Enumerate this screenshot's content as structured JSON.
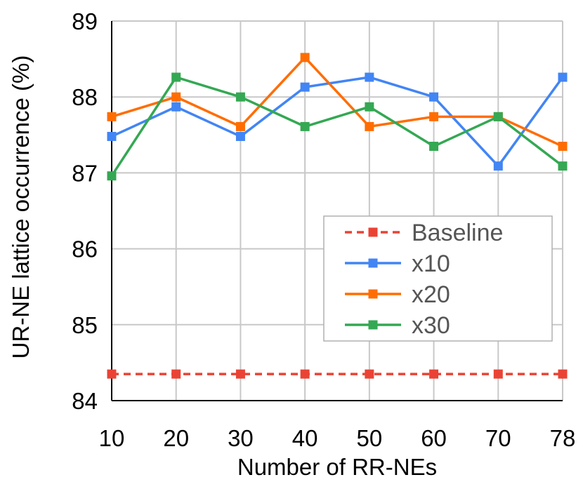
{
  "chart_data": {
    "type": "line",
    "title": "",
    "xlabel": "Number of RR-NEs",
    "ylabel": "UR-NE lattice occurrence (%)",
    "categories": [
      "10",
      "20",
      "30",
      "40",
      "50",
      "60",
      "70",
      "78"
    ],
    "ylim": [
      84,
      89
    ],
    "yticks": [
      "84",
      "85",
      "86",
      "87",
      "88",
      "89"
    ],
    "grid": true,
    "legend_position": "center-right",
    "series": [
      {
        "name": "Baseline",
        "color": "#ea4335",
        "dashed": true,
        "values": [
          84.35,
          84.35,
          84.35,
          84.35,
          84.35,
          84.35,
          84.35,
          84.35
        ]
      },
      {
        "name": "x10",
        "color": "#4285f4",
        "dashed": false,
        "values": [
          87.48,
          87.87,
          87.48,
          88.13,
          88.26,
          88.0,
          87.09,
          88.26
        ]
      },
      {
        "name": "x20",
        "color": "#ff6d01",
        "dashed": false,
        "values": [
          87.74,
          88.0,
          87.61,
          88.52,
          87.61,
          87.74,
          87.74,
          87.35
        ]
      },
      {
        "name": "x30",
        "color": "#34a853",
        "dashed": false,
        "values": [
          86.96,
          88.26,
          88.0,
          87.61,
          87.87,
          87.35,
          87.74,
          87.09
        ]
      }
    ]
  }
}
